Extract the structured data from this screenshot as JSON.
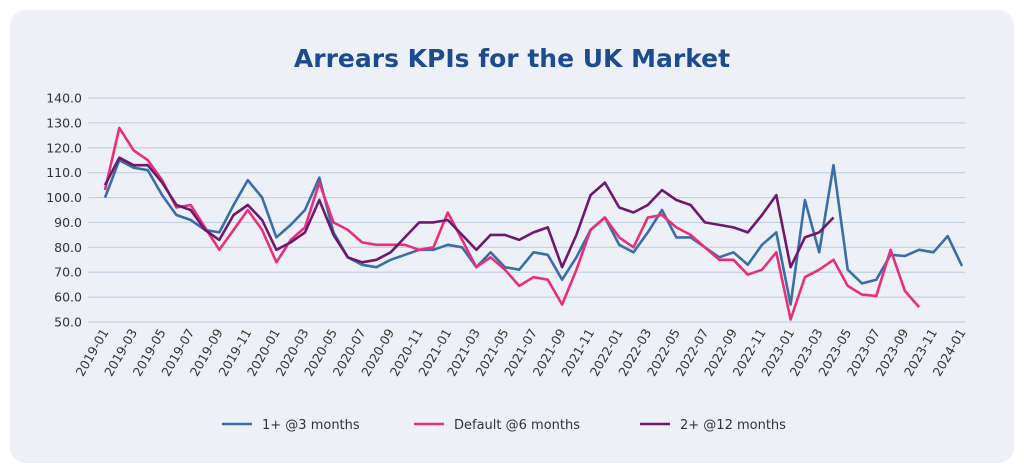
{
  "chart_data": {
    "type": "line",
    "title": "Arrears KPIs for the UK Market",
    "xlabel": "",
    "ylabel": "",
    "ylim": [
      50,
      140
    ],
    "yticks": [
      "50.0",
      "60.0",
      "70.0",
      "80.0",
      "90.0",
      "100.0",
      "110.0",
      "120.0",
      "130.0",
      "140.0"
    ],
    "x_start": "2019-01",
    "x_end": "2024-01",
    "xtick_labels": [
      "2019-01",
      "2019-03",
      "2019-05",
      "2019-07",
      "2019-09",
      "2019-11",
      "2020-01",
      "2020-03",
      "2020-05",
      "2020-07",
      "2020-09",
      "2020-11",
      "2021-01",
      "2021-03",
      "2021-05",
      "2021-07",
      "2021-09",
      "2021-11",
      "2022-01",
      "2022-03",
      "2022-05",
      "2022-07",
      "2022-09",
      "2022-11",
      "2023-01",
      "2023-03",
      "2023-05",
      "2023-07",
      "2023-09",
      "2023-11",
      "2024-01"
    ],
    "grid": true,
    "legend_position": "bottom",
    "series": [
      {
        "name": "1+ @3 months",
        "color": "#3b6ea8",
        "values": [
          100,
          115,
          112,
          111,
          101,
          93,
          91,
          87,
          86,
          97,
          107,
          100,
          84,
          89,
          95,
          108,
          86,
          76,
          73,
          72,
          75,
          77,
          79,
          79,
          81,
          80,
          72,
          78,
          72,
          71,
          78,
          77,
          67,
          76,
          87,
          92,
          81,
          78,
          86,
          95,
          84,
          84,
          80,
          76,
          78,
          73,
          81,
          86,
          57,
          99,
          78,
          113,
          71,
          65.5,
          67,
          77,
          76.5,
          79,
          78,
          84.5,
          72.5
        ]
      },
      {
        "name": "Default @6 months",
        "color": "#e8307a",
        "values": [
          103,
          128,
          119,
          115,
          107,
          96,
          97,
          88,
          79,
          87,
          95,
          87,
          74,
          83,
          88,
          106,
          90,
          87,
          82,
          81,
          81,
          81,
          79,
          80,
          94,
          83,
          72,
          76,
          71,
          64.5,
          68,
          67,
          57,
          71,
          87,
          92,
          84,
          80,
          92,
          93,
          88,
          85,
          80,
          75,
          75,
          69,
          71,
          78,
          51,
          68,
          71,
          75,
          64.5,
          61,
          60.5,
          79,
          62.5,
          56
        ]
      },
      {
        "name": "2+ @12 months",
        "color": "#6b1a6e",
        "values": [
          105,
          116,
          113,
          113,
          106,
          97,
          95,
          87,
          83,
          93,
          97,
          91,
          79,
          82,
          86,
          99,
          85,
          76,
          74,
          75,
          78,
          84,
          90,
          90,
          91,
          85,
          79,
          85,
          85,
          83,
          86,
          88,
          72,
          85,
          101,
          106,
          96,
          94,
          97,
          103,
          99,
          97,
          90,
          89,
          88,
          86,
          93,
          101,
          72,
          84,
          86,
          92
        ]
      }
    ]
  }
}
